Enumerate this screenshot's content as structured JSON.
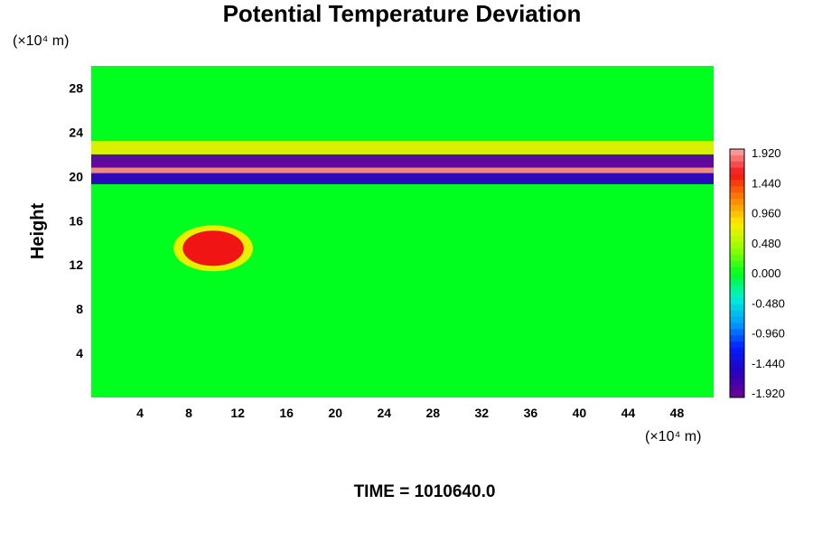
{
  "chart_data": {
    "type": "heatmap",
    "title": "Potential Temperature Deviation",
    "ylabel": "Height",
    "x_unit": "(×10⁴ m)",
    "y_unit": "(×10⁴ m)",
    "x_ticks": [
      4,
      8,
      12,
      16,
      20,
      24,
      28,
      32,
      36,
      40,
      44,
      48
    ],
    "y_ticks": [
      4,
      8,
      12,
      16,
      20,
      24,
      28
    ],
    "xlim": [
      0,
      51
    ],
    "ylim": [
      0,
      30
    ],
    "colorbar": {
      "min": -2.0,
      "max": 2.0,
      "tick_labels": [
        "1.920",
        "1.440",
        "0.960",
        "0.480",
        "0.000",
        "-0.480",
        "-0.960",
        "-1.440",
        "-1.920"
      ]
    },
    "features": [
      {
        "type": "band",
        "y_center": 20.6,
        "y_halfwidth": 0.8,
        "value": 1.9
      },
      {
        "type": "band",
        "y_center": 21.4,
        "y_halfwidth": 0.6,
        "value": -1.9
      },
      {
        "type": "band",
        "y_center": 19.8,
        "y_halfwidth": 0.5,
        "value": -1.6
      },
      {
        "type": "band",
        "y_center": 22.6,
        "y_halfwidth": 0.6,
        "value": 0.7
      },
      {
        "type": "blob",
        "x": 10,
        "y": 13.5,
        "rx": 2.5,
        "ry": 1.6,
        "value": 1.6
      }
    ]
  },
  "footer": {
    "time_label": "TIME = 1010640.0"
  }
}
